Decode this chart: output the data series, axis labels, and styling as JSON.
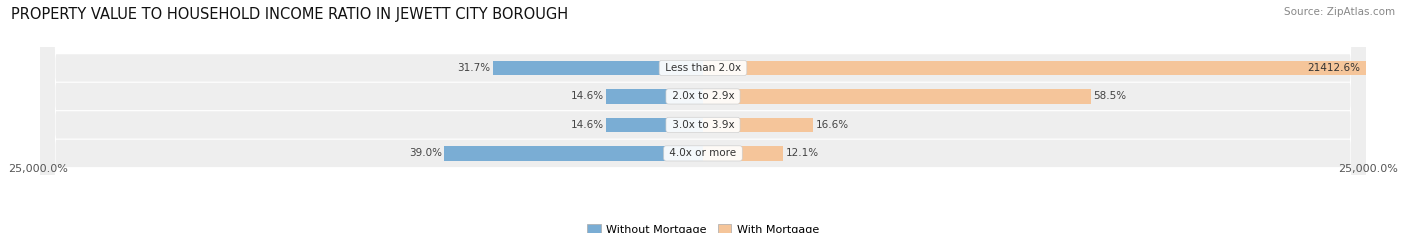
{
  "title": "PROPERTY VALUE TO HOUSEHOLD INCOME RATIO IN JEWETT CITY BOROUGH",
  "source": "Source: ZipAtlas.com",
  "categories": [
    "Less than 2.0x",
    "2.0x to 2.9x",
    "3.0x to 3.9x",
    "4.0x or more"
  ],
  "without_mortgage": [
    31.7,
    14.6,
    14.6,
    39.0
  ],
  "with_mortgage": [
    21412.6,
    58.5,
    16.6,
    12.1
  ],
  "without_mortgage_color": "#7aadd4",
  "with_mortgage_color": "#f5c59a",
  "bar_row_bg": "#eeeeee",
  "x_max": 25000.0,
  "xlabel_left": "25,000.0%",
  "xlabel_right": "25,000.0%",
  "legend_labels": [
    "Without Mortgage",
    "With Mortgage"
  ],
  "title_fontsize": 10.5,
  "tick_fontsize": 8,
  "label_fontsize": 7.5,
  "bar_height": 0.52
}
